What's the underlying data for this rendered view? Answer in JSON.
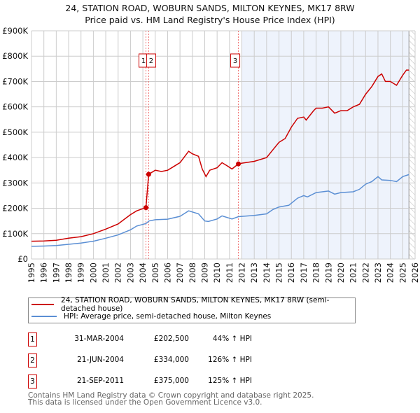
{
  "chart_data": {
    "type": "line",
    "title": "24, STATION ROAD, WOBURN SANDS, MILTON KEYNES, MK17 8RW",
    "subtitle": "Price paid vs. HM Land Registry's House Price Index (HPI)",
    "xlim": [
      1995,
      2026
    ],
    "ylim": [
      0,
      900000
    ],
    "x_ticks": [
      "1995",
      "1996",
      "1997",
      "1998",
      "1999",
      "2000",
      "2001",
      "2002",
      "2003",
      "2004",
      "2005",
      "2006",
      "2007",
      "2008",
      "2009",
      "2010",
      "2011",
      "2012",
      "2013",
      "2014",
      "2015",
      "2016",
      "2017",
      "2018",
      "2019",
      "2020",
      "2021",
      "2022",
      "2023",
      "2024",
      "2025",
      "2026"
    ],
    "y_ticks": [
      {
        "v": 0,
        "label": "£0"
      },
      {
        "v": 100000,
        "label": "£100K"
      },
      {
        "v": 200000,
        "label": "£200K"
      },
      {
        "v": 300000,
        "label": "£300K"
      },
      {
        "v": 400000,
        "label": "£400K"
      },
      {
        "v": 500000,
        "label": "£500K"
      },
      {
        "v": 600000,
        "label": "£600K"
      },
      {
        "v": 700000,
        "label": "£700K"
      },
      {
        "v": 800000,
        "label": "£800K"
      },
      {
        "v": 900000,
        "label": "£900K"
      }
    ],
    "grid": true,
    "forecast_shade_start": 2012,
    "hatch_start": 2025.5,
    "series": [
      {
        "name": "24, STATION ROAD, WOBURN SANDS, MILTON KEYNES, MK17 8RW (semi-detached house)",
        "color": "#cc0000",
        "x": [
          1995,
          1996,
          1997,
          1998,
          1999,
          2000,
          2001,
          2002,
          2003,
          2003.5,
          2004.25,
          2004.47,
          2005,
          2005.5,
          2006,
          2006.5,
          2007,
          2007.7,
          2008,
          2008.5,
          2008.8,
          2009.1,
          2009.4,
          2010,
          2010.4,
          2010.8,
          2011.2,
          2011.72,
          2012,
          2013,
          2014,
          2014.5,
          2015,
          2015.5,
          2016,
          2016.5,
          2017,
          2017.2,
          2017.8,
          2018,
          2018.5,
          2019,
          2019.5,
          2020,
          2020.5,
          2021,
          2021.5,
          2022,
          2022.5,
          2023,
          2023.3,
          2023.6,
          2024,
          2024.5,
          2025,
          2025.3,
          2025.5
        ],
        "y": [
          70000,
          71000,
          74000,
          82000,
          88000,
          100000,
          118000,
          138000,
          175000,
          190000,
          202500,
          334000,
          350000,
          345000,
          350000,
          365000,
          380000,
          425000,
          415000,
          405000,
          355000,
          325000,
          350000,
          360000,
          380000,
          368000,
          355000,
          375000,
          378000,
          385000,
          400000,
          430000,
          460000,
          475000,
          520000,
          555000,
          560000,
          548000,
          585000,
          595000,
          595000,
          600000,
          575000,
          585000,
          585000,
          600000,
          610000,
          650000,
          680000,
          720000,
          730000,
          700000,
          700000,
          685000,
          725000,
          745000,
          745000
        ]
      },
      {
        "name": "HPI: Average price, semi-detached house, Milton Keynes",
        "color": "#5b8fd4",
        "x": [
          1995,
          1996,
          1997,
          1998,
          1999,
          2000,
          2001,
          2002,
          2003,
          2003.5,
          2004.25,
          2004.5,
          2005,
          2006,
          2007,
          2007.7,
          2008.5,
          2009,
          2009.3,
          2010,
          2010.4,
          2011.2,
          2011.72,
          2013,
          2014,
          2014.5,
          2015,
          2015.8,
          2016.5,
          2017,
          2017.3,
          2018,
          2019,
          2019.5,
          2020,
          2021,
          2021.5,
          2022,
          2022.5,
          2023,
          2023.3,
          2024,
          2024.5,
          2025,
          2025.5
        ],
        "y": [
          50000,
          51000,
          53000,
          58000,
          63000,
          70000,
          82000,
          95000,
          115000,
          130000,
          140000,
          150000,
          155000,
          157000,
          168000,
          190000,
          178000,
          150000,
          148000,
          158000,
          170000,
          158000,
          167000,
          172000,
          178000,
          195000,
          205000,
          212000,
          240000,
          250000,
          245000,
          262000,
          268000,
          256000,
          262000,
          265000,
          275000,
          295000,
          305000,
          325000,
          312000,
          310000,
          305000,
          325000,
          333000
        ]
      }
    ],
    "sales": [
      {
        "id": "1",
        "x": 2004.25,
        "date": "31-MAR-2004",
        "price": 202500,
        "price_label": "£202,500",
        "hpi": "44% ↑ HPI"
      },
      {
        "id": "2",
        "x": 2004.47,
        "date": "21-JUN-2004",
        "price": 334000,
        "price_label": "£334,000",
        "hpi": "126% ↑ HPI"
      },
      {
        "id": "3",
        "x": 2011.72,
        "date": "21-SEP-2011",
        "price": 375000,
        "price_label": "£375,000",
        "hpi": "125% ↑ HPI"
      }
    ]
  },
  "legend": {
    "red": "24, STATION ROAD, WOBURN SANDS, MILTON KEYNES, MK17 8RW (semi-detached house)",
    "blue": "HPI: Average price, semi-detached house, Milton Keynes"
  },
  "footer": {
    "line1": "Contains HM Land Registry data © Crown copyright and database right 2025.",
    "line2": "This data is licensed under the Open Government Licence v3.0."
  }
}
